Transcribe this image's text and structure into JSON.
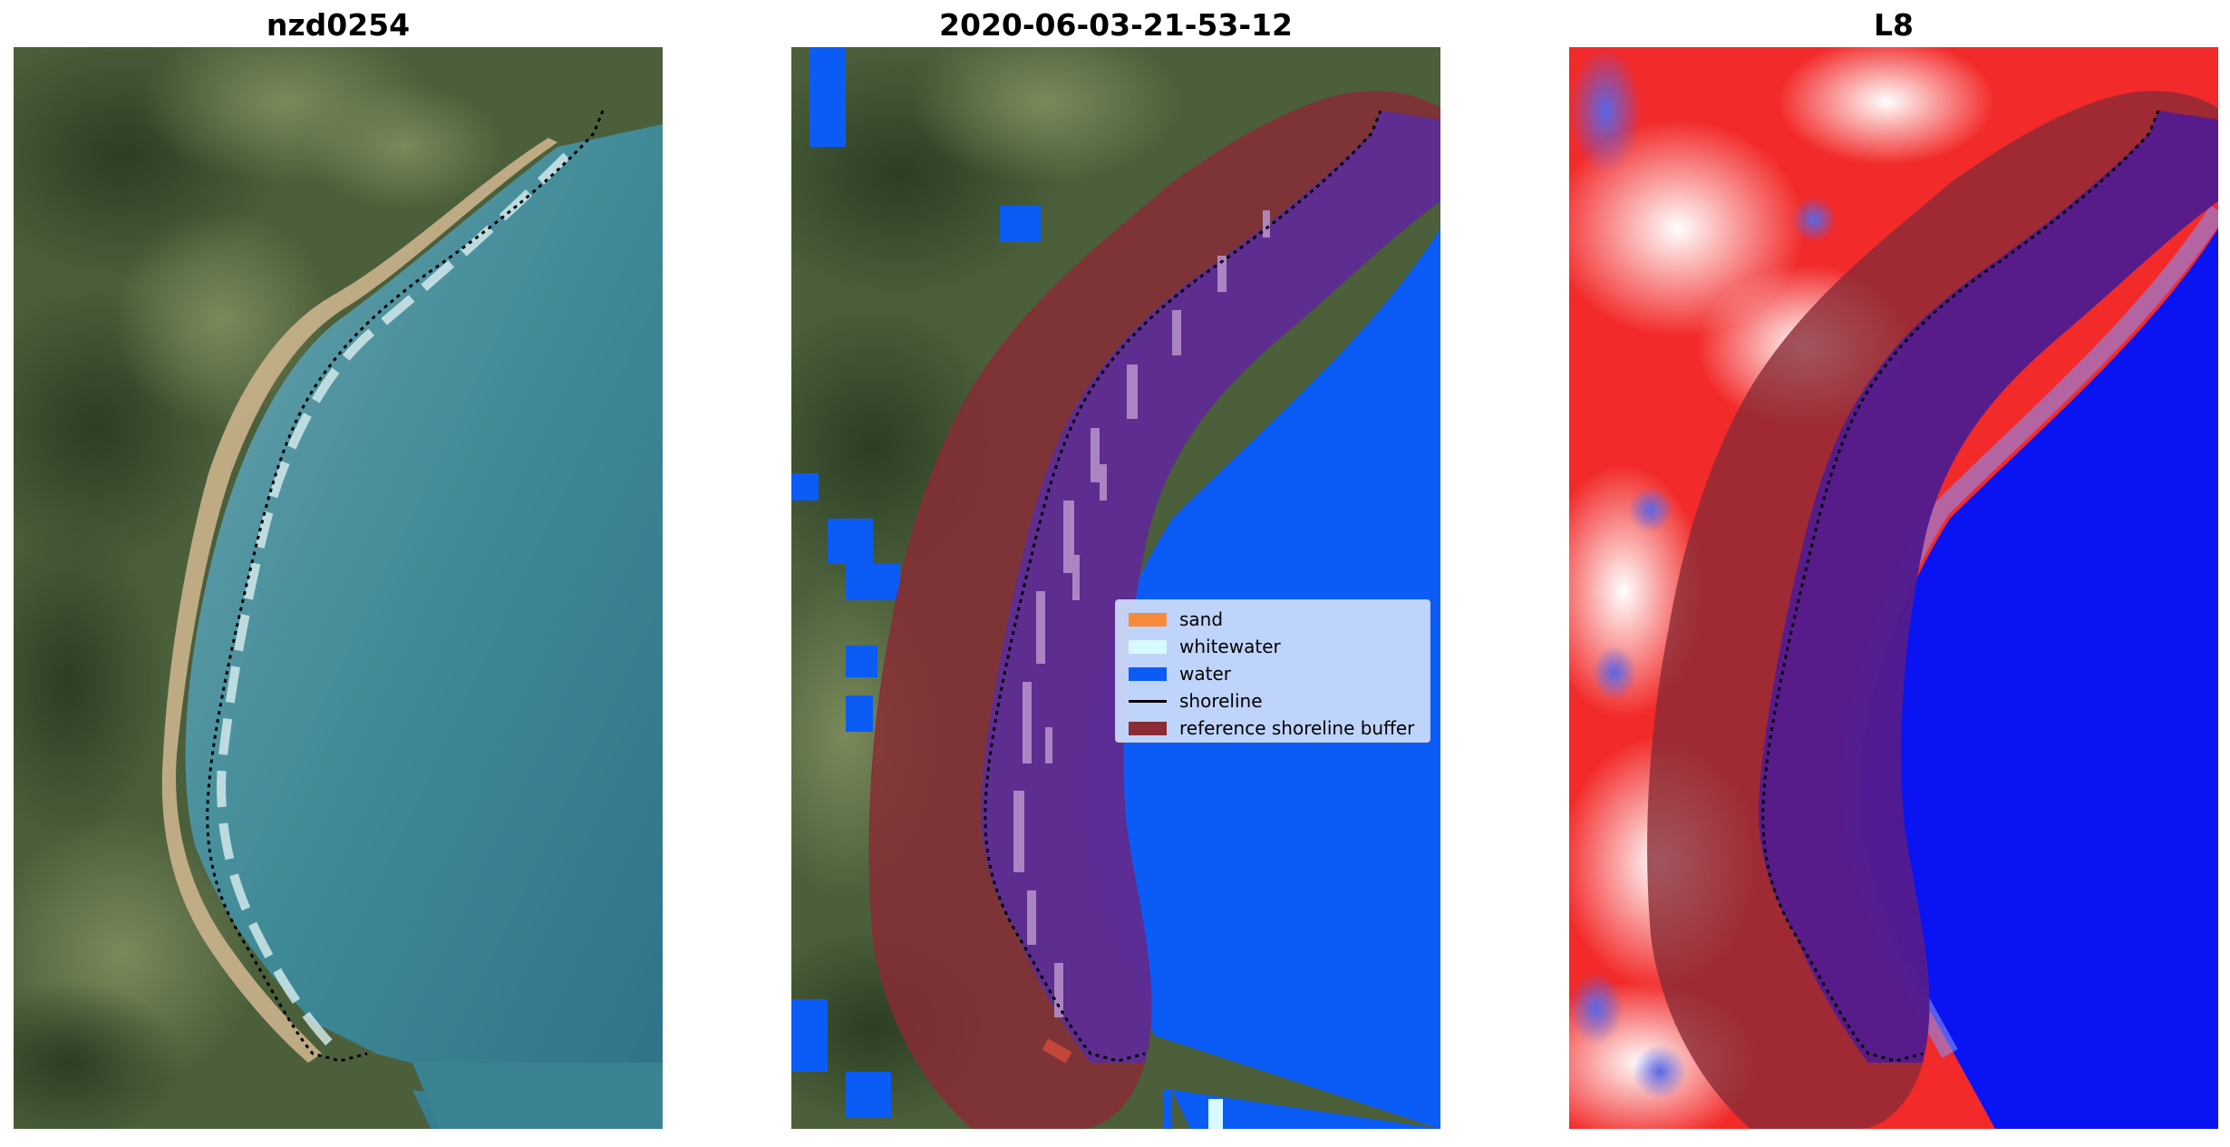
{
  "panels": [
    {
      "title": "nzd0254"
    },
    {
      "title": "2020-06-03-21-53-12"
    },
    {
      "title": "L8"
    }
  ],
  "legend": {
    "entries": [
      {
        "label": "sand",
        "color": "#f58a3c",
        "kind": "patch"
      },
      {
        "label": "whitewater",
        "color": "#d6faff",
        "kind": "patch"
      },
      {
        "label": "water",
        "color": "#0b5cf7",
        "kind": "patch"
      },
      {
        "label": "shoreline",
        "color": "#000000",
        "kind": "line"
      },
      {
        "label": "reference shoreline buffer",
        "color": "#8a2b36",
        "kind": "patch"
      }
    ]
  },
  "colors": {
    "land": "#4a5e3a",
    "beach_sand": "#c9b08a",
    "ocean": "#3e8794",
    "classified_water": "#0b5cf7",
    "buffer": "#8a2b36",
    "index_land": "#f22a2a",
    "index_water": "#0a14f2",
    "shoreline": "#000000"
  }
}
